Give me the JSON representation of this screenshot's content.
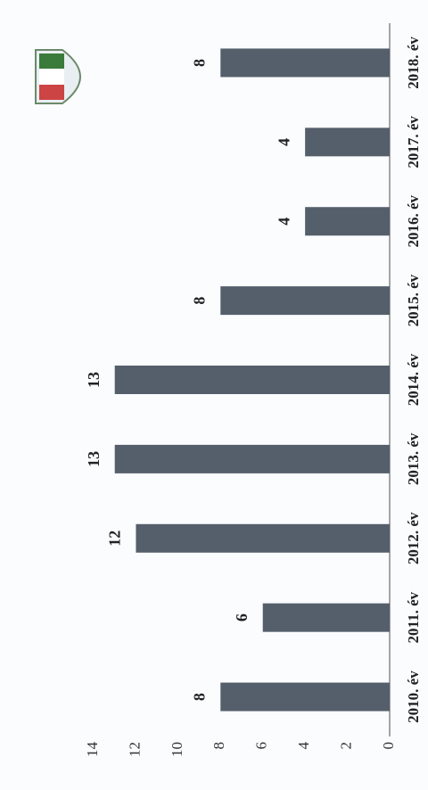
{
  "chart_data": {
    "type": "bar",
    "categories": [
      "2010. év",
      "2011. év",
      "2012. év",
      "2013. év",
      "2014. év",
      "2015. év",
      "2016. év",
      "2017. év",
      "2018. év"
    ],
    "values": [
      8,
      6,
      12,
      13,
      13,
      8,
      4,
      4,
      8
    ],
    "color": "#555f6b",
    "ylim": [
      0,
      14
    ],
    "yticks": [
      0,
      2,
      4,
      6,
      8,
      10,
      12,
      14
    ],
    "grid": false,
    "data_labels": true
  }
}
